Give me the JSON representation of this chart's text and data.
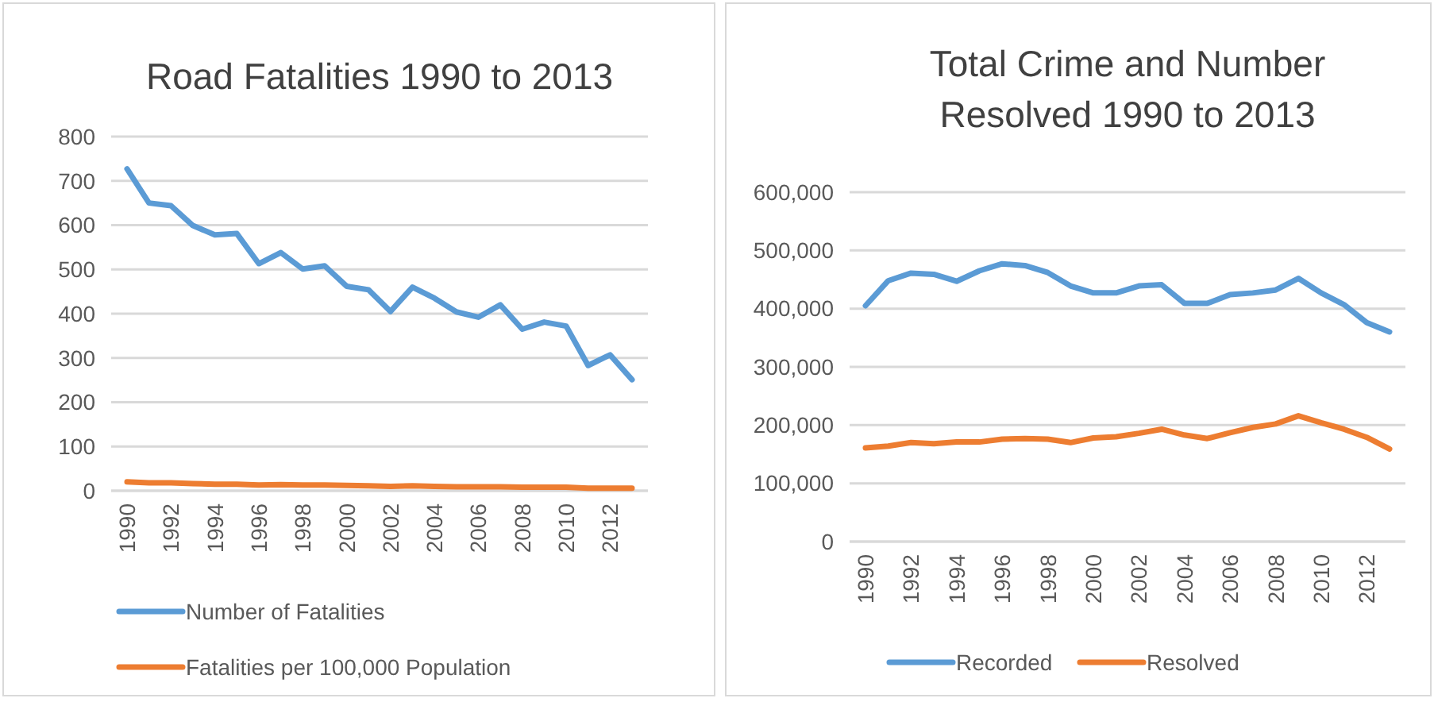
{
  "chart_data": [
    {
      "type": "line",
      "title": "Road Fatalities 1990 to 2013",
      "categories": [
        "1990",
        null,
        "1992",
        null,
        "1994",
        null,
        "1996",
        null,
        "1998",
        null,
        "2000",
        null,
        "2002",
        null,
        "2004",
        null,
        "2006",
        null,
        "2008",
        null,
        "2010",
        null,
        "2012",
        null
      ],
      "series": [
        {
          "name": "Number of Fatalities",
          "color": "#5b9bd5",
          "values": [
            727,
            650,
            644,
            599,
            578,
            581,
            513,
            538,
            501,
            508,
            462,
            454,
            405,
            460,
            435,
            404,
            392,
            420,
            365,
            381,
            372,
            283,
            307,
            251
          ]
        },
        {
          "name": "Fatalities per 100,000 Population",
          "color": "#ed7d31",
          "values": [
            20,
            18,
            18,
            16,
            15,
            15,
            13,
            14,
            13,
            13,
            12,
            11,
            10,
            11,
            10,
            9,
            9,
            9,
            8,
            8,
            8,
            6,
            6,
            6
          ]
        }
      ],
      "ylim": [
        0,
        800
      ],
      "yticks": [
        0,
        100,
        200,
        300,
        400,
        500,
        600,
        700,
        800
      ],
      "grid": "y",
      "legend": "bottom",
      "line_style": "solid"
    },
    {
      "type": "line",
      "title": "Total Crime and Number Resolved 1990 to 2013",
      "categories": [
        "1990",
        null,
        "1992",
        null,
        "1994",
        null,
        "1996",
        null,
        "1998",
        null,
        "2000",
        null,
        "2002",
        null,
        "2004",
        null,
        "2006",
        null,
        "2008",
        null,
        "2010",
        null,
        "2012",
        null
      ],
      "series": [
        {
          "name": "Recorded",
          "color": "#5b9bd5",
          "values": [
            405000,
            448000,
            461000,
            459000,
            447000,
            465000,
            477000,
            474000,
            462000,
            439000,
            427000,
            427000,
            439000,
            441000,
            409000,
            409000,
            424000,
            427000,
            432000,
            452000,
            427000,
            407000,
            376000,
            360000
          ]
        },
        {
          "name": "Resolved",
          "color": "#ed7d31",
          "values": [
            161000,
            164000,
            170000,
            168000,
            171000,
            171000,
            176000,
            177000,
            176000,
            170000,
            178000,
            180000,
            186000,
            193000,
            183000,
            177000,
            187000,
            196000,
            202000,
            216000,
            204000,
            193000,
            179000,
            159000
          ]
        }
      ],
      "ylim": [
        0,
        600000
      ],
      "yticks": [
        0,
        {
          "value": 100000,
          "label": "100,000"
        },
        {
          "value": 200000,
          "label": "200,000"
        },
        {
          "value": 300000,
          "label": "300,000"
        },
        {
          "value": 400000,
          "label": "400,000"
        },
        {
          "value": 500000,
          "label": "500,000"
        },
        {
          "value": 600000,
          "label": "600,000"
        }
      ],
      "grid": "y",
      "legend": "bottom",
      "line_style": "solid"
    }
  ]
}
